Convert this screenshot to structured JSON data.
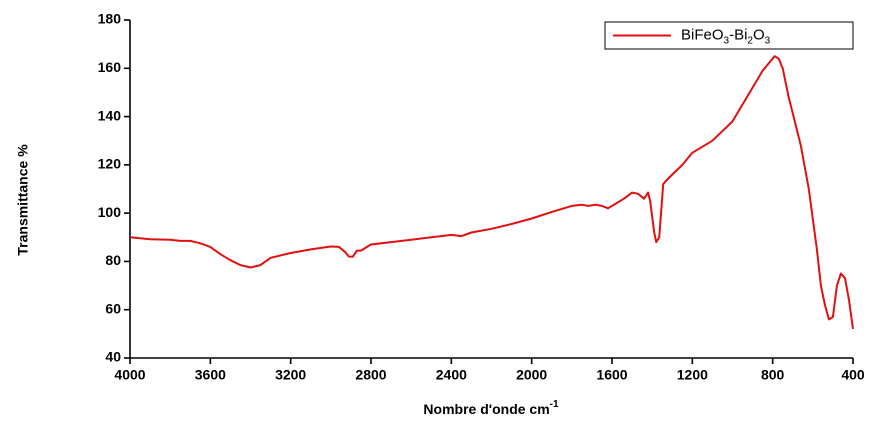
{
  "chart_data": {
    "type": "line",
    "x_label": "Nombre d'onde cm-1",
    "y_label": "Transmittance %",
    "xlim": [
      4000,
      400
    ],
    "xticks": [
      4000,
      3600,
      3200,
      2800,
      2400,
      2000,
      1600,
      1200,
      800,
      400
    ],
    "ylim": [
      40,
      180
    ],
    "yticks": [
      40,
      60,
      80,
      100,
      120,
      140,
      160,
      180
    ],
    "legend": "upper right",
    "x": [
      4000,
      3900,
      3800,
      3750,
      3700,
      3650,
      3600,
      3550,
      3500,
      3450,
      3400,
      3350,
      3300,
      3200,
      3100,
      3000,
      2960,
      2930,
      2910,
      2890,
      2870,
      2850,
      2820,
      2800,
      2700,
      2600,
      2500,
      2450,
      2400,
      2350,
      2300,
      2200,
      2100,
      2000,
      1900,
      1800,
      1750,
      1720,
      1680,
      1650,
      1620,
      1580,
      1540,
      1500,
      1470,
      1440,
      1420,
      1410,
      1390,
      1380,
      1365,
      1345,
      1330,
      1300,
      1250,
      1200,
      1100,
      1000,
      950,
      900,
      850,
      820,
      790,
      770,
      750,
      720,
      690,
      660,
      620,
      580,
      560,
      540,
      520,
      500,
      480,
      460,
      440,
      420,
      400
    ],
    "series": [
      {
        "name": "BiFeO3-Bi2O3",
        "color": "#e01010",
        "values": [
          90,
          89.2,
          89,
          88.5,
          88.5,
          87.5,
          86,
          83,
          80.5,
          78.5,
          77.5,
          78.5,
          81.5,
          83.5,
          85,
          86.2,
          86,
          84,
          82,
          82,
          84.5,
          84.5,
          86,
          87,
          88,
          89,
          90,
          90.5,
          91,
          90.5,
          92,
          93.5,
          95.5,
          97.8,
          100.5,
          103,
          103.5,
          103,
          103.5,
          103,
          102,
          104,
          106,
          108.5,
          108,
          106,
          108.5,
          105,
          92,
          88,
          90,
          112,
          113.5,
          116,
          120,
          125,
          130,
          138,
          145,
          152,
          159,
          162,
          165,
          164,
          160,
          148,
          138,
          128,
          110,
          85,
          70,
          62,
          56,
          57,
          70,
          75,
          73,
          64,
          52
        ]
      }
    ]
  }
}
